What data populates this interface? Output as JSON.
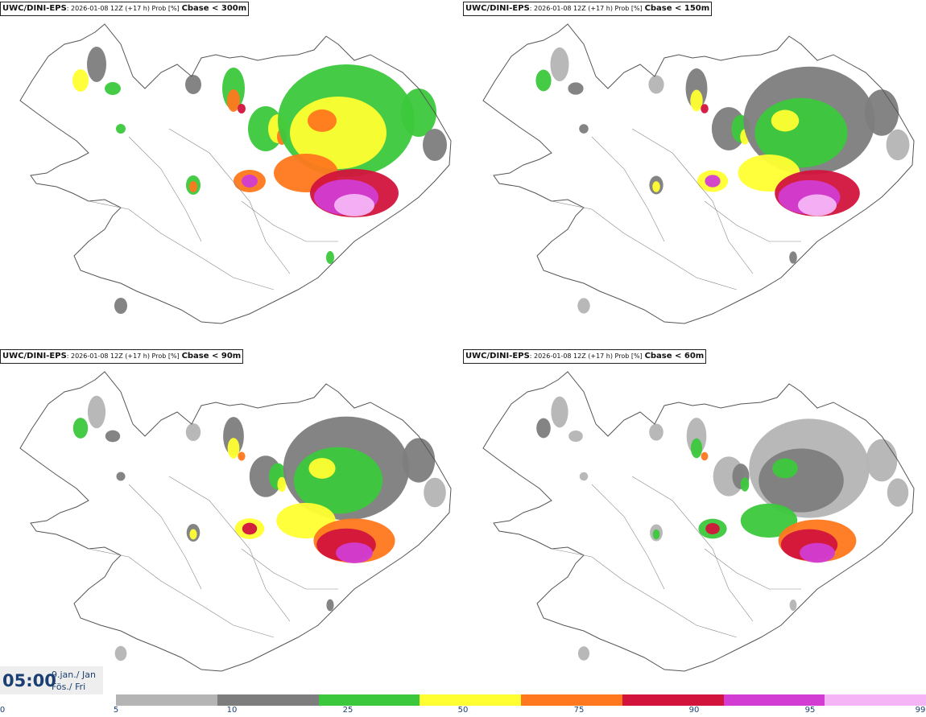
{
  "panels": [
    {
      "model": "UWC/DINI-EPS",
      "meta": ": 2026-01-08 12Z (+17 h) Prob [%]",
      "threshold": "Cbase < 300m"
    },
    {
      "model": "UWC/DINI-EPS",
      "meta": ": 2026-01-08 12Z (+17 h) Prob [%]",
      "threshold": "Cbase < 150m"
    },
    {
      "model": "UWC/DINI-EPS",
      "meta": ": 2026-01-08 12Z (+17 h) Prob [%]",
      "threshold": "Cbase < 90m"
    },
    {
      "model": "UWC/DINI-EPS",
      "meta": ": 2026-01-08 12Z (+17 h) Prob [%]",
      "threshold": "Cbase < 60m"
    }
  ],
  "valid_time": {
    "time": "05:00",
    "date_line1": "9.jan./ Jan",
    "date_line2": "Fös./ Fri"
  },
  "legend": {
    "ticks": [
      "0",
      "5",
      "10",
      "25",
      "50",
      "75",
      "90",
      "95",
      "99"
    ],
    "colors": [
      "#b4b4b4",
      "#7d7d7d",
      "#3cc83c",
      "#ffff32",
      "#ff781e",
      "#d2143c",
      "#d23cd2",
      "#f5b4f5"
    ]
  },
  "colors": {
    "land_outline": "#555555",
    "background": "#ffffff"
  }
}
